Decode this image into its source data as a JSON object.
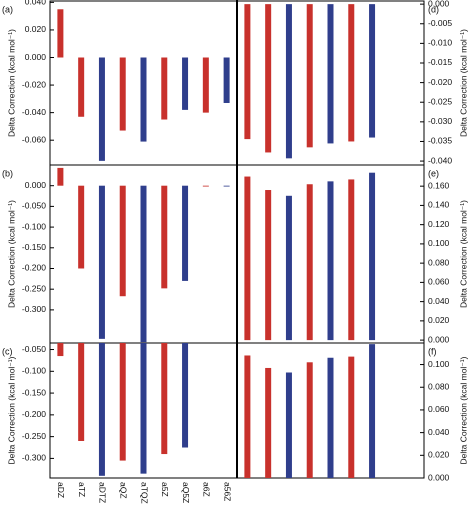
{
  "chart_data": [
    {
      "type": "bar",
      "title": "(a)",
      "axis_side": "left",
      "ylabel": "Delta Correction (kcal mol⁻¹)",
      "values": [
        0.035,
        -0.043,
        -0.075,
        -0.053,
        -0.061,
        -0.045,
        -0.038,
        -0.04,
        -0.033
      ],
      "colors": [
        "#c8312c",
        "#c8312c",
        "#2f3e8c",
        "#c8312c",
        "#2f3e8c",
        "#c8312c",
        "#2f3e8c",
        "#c8312c",
        "#2f3e8c"
      ],
      "ylim": [
        -0.078,
        0.041
      ],
      "yticks": [
        {
          "value": 0.04,
          "label": "0.040"
        },
        {
          "value": 0.02,
          "label": "0.020"
        },
        {
          "value": 0,
          "label": "0.000"
        },
        {
          "value": -0.02,
          "label": "-0.020"
        },
        {
          "value": -0.04,
          "label": "-0.040"
        },
        {
          "value": -0.06,
          "label": "-0.060"
        }
      ]
    },
    {
      "type": "bar",
      "title": "(b)",
      "axis_side": "left",
      "ylabel": "Delta Correction (kcal mol⁻¹)",
      "values": [
        0.043,
        -0.2,
        -0.37,
        -0.267,
        -0.378,
        -0.248,
        -0.23,
        -0.002,
        -0.002
      ],
      "colors": [
        "#c8312c",
        "#c8312c",
        "#2f3e8c",
        "#c8312c",
        "#2f3e8c",
        "#c8312c",
        "#2f3e8c",
        "#c8312c",
        "#2f3e8c"
      ],
      "ylim": [
        -0.38,
        0.05
      ],
      "yticks": [
        {
          "value": 0,
          "label": "0.000"
        },
        {
          "value": -0.05,
          "label": "-0.050"
        },
        {
          "value": -0.1,
          "label": "-0.100"
        },
        {
          "value": -0.15,
          "label": "-0.150"
        },
        {
          "value": -0.2,
          "label": "-0.200"
        },
        {
          "value": -0.25,
          "label": "-0.250"
        },
        {
          "value": -0.3,
          "label": "-0.300"
        }
      ]
    },
    {
      "type": "bar",
      "title": "(c)",
      "axis_side": "left",
      "ylabel": "Delta Correction (kcal mol⁻¹)",
      "categories": [
        "aDZ",
        "aTZ",
        "aDTZ",
        "aQZ",
        "aTQZ",
        "a5Z",
        "aQ5Z",
        "a6Z",
        "a56Z"
      ],
      "values": [
        -0.065,
        -0.26,
        -0.34,
        -0.305,
        -0.335,
        -0.29,
        -0.275,
        null,
        null
      ],
      "colors": [
        "#c8312c",
        "#c8312c",
        "#2f3e8c",
        "#c8312c",
        "#2f3e8c",
        "#c8312c",
        "#2f3e8c",
        "#c8312c",
        "#2f3e8c"
      ],
      "ylim": [
        -0.345,
        -0.035
      ],
      "yticks": [
        {
          "value": -0.05,
          "label": "-0.050"
        },
        {
          "value": -0.1,
          "label": "-0.100"
        },
        {
          "value": -0.15,
          "label": "-0.150"
        },
        {
          "value": -0.2,
          "label": "-0.200"
        },
        {
          "value": -0.25,
          "label": "-0.250"
        },
        {
          "value": -0.3,
          "label": "-0.300"
        }
      ]
    },
    {
      "type": "bar",
      "title": "(d)",
      "axis_side": "right",
      "ylabel": "Delta Correction (kcal mol⁻¹)",
      "values": [
        -0.0344,
        -0.0378,
        -0.0393,
        -0.0365,
        -0.0355,
        -0.035,
        -0.034,
        null,
        null
      ],
      "colors": [
        "#c8312c",
        "#c8312c",
        "#2f3e8c",
        "#c8312c",
        "#2f3e8c",
        "#c8312c",
        "#2f3e8c",
        "#c8312c",
        "#2f3e8c"
      ],
      "ylim": [
        -0.041,
        0.0008
      ],
      "yticks": [
        {
          "value": 0,
          "label": "0.000"
        },
        {
          "value": -0.005,
          "label": "-0.005"
        },
        {
          "value": -0.01,
          "label": "-0.010"
        },
        {
          "value": -0.015,
          "label": "-0.015"
        },
        {
          "value": -0.02,
          "label": "-0.020"
        },
        {
          "value": -0.025,
          "label": "-0.025"
        },
        {
          "value": -0.03,
          "label": "-0.030"
        },
        {
          "value": -0.035,
          "label": "-0.035"
        },
        {
          "value": -0.04,
          "label": "-0.040"
        }
      ]
    },
    {
      "type": "bar",
      "title": "(e)",
      "axis_side": "right",
      "ylabel": "Delta Correction (kcal mol⁻¹)",
      "values": [
        0.17,
        0.156,
        0.15,
        0.162,
        0.165,
        0.167,
        0.174,
        null,
        null
      ],
      "colors": [
        "#c8312c",
        "#c8312c",
        "#2f3e8c",
        "#c8312c",
        "#2f3e8c",
        "#c8312c",
        "#2f3e8c",
        "#c8312c",
        "#2f3e8c"
      ],
      "ylim": [
        -0.003,
        0.182
      ],
      "yticks": [
        {
          "value": 0,
          "label": "0.000"
        },
        {
          "value": 0.02,
          "label": "0.020"
        },
        {
          "value": 0.04,
          "label": "0.040"
        },
        {
          "value": 0.06,
          "label": "0.060"
        },
        {
          "value": 0.08,
          "label": "0.080"
        },
        {
          "value": 0.1,
          "label": "0.100"
        },
        {
          "value": 0.12,
          "label": "0.120"
        },
        {
          "value": 0.14,
          "label": "0.140"
        },
        {
          "value": 0.16,
          "label": "0.160"
        }
      ]
    },
    {
      "type": "bar",
      "title": "(f)",
      "axis_side": "right",
      "ylabel": "Delta Correction (kcal mol⁻¹)",
      "values": [
        0.108,
        0.097,
        0.093,
        0.102,
        0.106,
        0.107,
        0.118,
        null,
        null
      ],
      "colors": [
        "#c8312c",
        "#c8312c",
        "#2f3e8c",
        "#c8312c",
        "#2f3e8c",
        "#c8312c",
        "#2f3e8c",
        "#c8312c",
        "#2f3e8c"
      ],
      "ylim": [
        0,
        0.119
      ],
      "yticks": [
        {
          "value": 0,
          "label": "0.000"
        },
        {
          "value": 0.02,
          "label": "0.020"
        },
        {
          "value": 0.04,
          "label": "0.040"
        },
        {
          "value": 0.06,
          "label": "0.060"
        },
        {
          "value": 0.08,
          "label": "0.080"
        },
        {
          "value": 0.1,
          "label": "0.100"
        }
      ]
    }
  ]
}
